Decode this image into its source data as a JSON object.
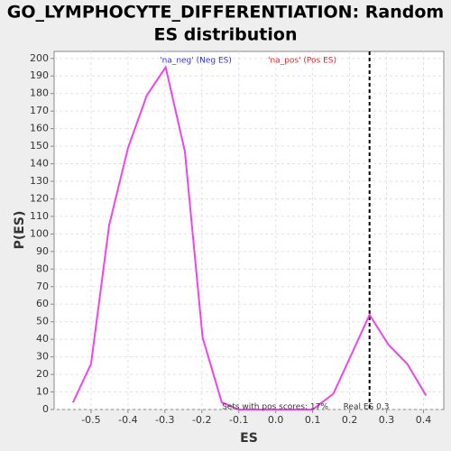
{
  "chart_data": {
    "type": "line",
    "title": [
      "GO_LYMPHOCYTE_DIFFERENTIATION: Random",
      "ES distribution"
    ],
    "xlabel": "ES",
    "ylabel": "P(ES)",
    "x": [
      -0.549,
      -0.5,
      -0.451,
      -0.4,
      -0.349,
      -0.298,
      -0.246,
      -0.198,
      -0.146,
      -0.1,
      -0.05,
      0.0,
      0.05,
      0.1,
      0.156,
      0.202,
      0.254,
      0.305,
      0.356,
      0.407
    ],
    "series": [
      {
        "name": "P(ES)",
        "color": "#ee44ee",
        "values": [
          4,
          26,
          105,
          149,
          179,
          195,
          147,
          41,
          4,
          0,
          0,
          0,
          0,
          0,
          9,
          30,
          54,
          37,
          26,
          8
        ]
      }
    ],
    "xlim": [
      -0.6,
      0.455
    ],
    "ylim": [
      0,
      204
    ],
    "xticks": [
      -0.5,
      -0.4,
      -0.3,
      -0.2,
      -0.1,
      {
        "value": 0,
        "label": "0.0"
      },
      0.1,
      0.2,
      0.3,
      0.4
    ],
    "yticks": [
      0,
      10,
      20,
      30,
      40,
      50,
      60,
      70,
      80,
      90,
      100,
      110,
      120,
      130,
      140,
      150,
      160,
      170,
      180,
      190,
      200
    ],
    "grid": true,
    "real_es": 0.254,
    "annotations": [
      {
        "text": "'na_neg' (Neg ES)",
        "color": "#3333cc"
      },
      {
        "text": "'na_pos' (Pos ES)",
        "color": "#ee2222"
      },
      {
        "text": "Sets with pos scores: 17%"
      },
      {
        "text": "Real ES 0.3"
      }
    ]
  }
}
